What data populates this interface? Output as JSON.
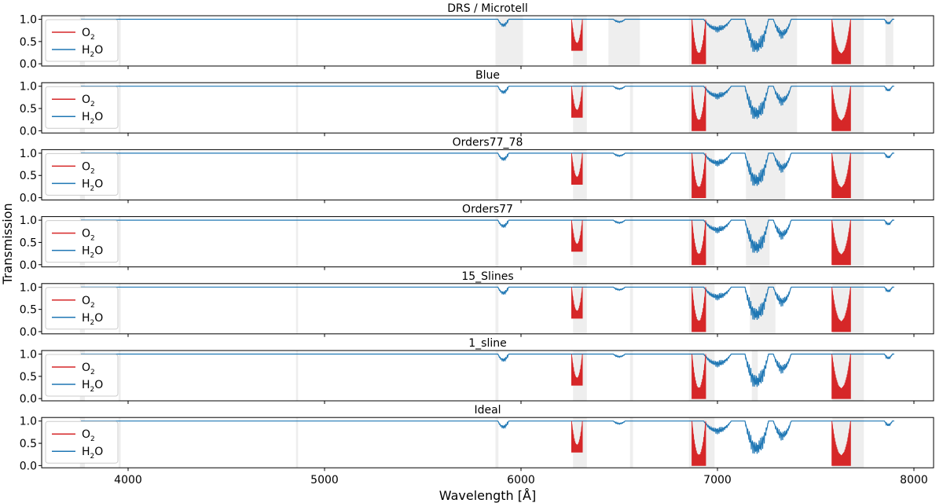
{
  "chart_data": {
    "type": "line",
    "xlabel": "Wavelength [Å]",
    "ylabel": "Transmission",
    "xlim": [
      3560,
      8100
    ],
    "ylim": [
      -0.05,
      1.08
    ],
    "x_ticks": [
      4000,
      5000,
      6000,
      7000,
      8000
    ],
    "y_ticks": [
      0.0,
      0.5,
      1.0
    ],
    "grid": false,
    "legend_position": "upper-left",
    "colors": {
      "O2": "#d62728",
      "H2O": "#1f77b4",
      "mask": "#eeeeee"
    },
    "series": [
      {
        "name": "O2",
        "bands": [
          {
            "center": 6285,
            "width": 55,
            "min": 0.3
          },
          {
            "center": 6905,
            "width": 70,
            "min": 0.0
          },
          {
            "center": 7630,
            "width": 95,
            "min": 0.0
          }
        ]
      },
      {
        "name": "H2O",
        "bands": [
          {
            "center": 5910,
            "width": 55,
            "min": 0.82
          },
          {
            "center": 6500,
            "width": 60,
            "min": 0.92
          },
          {
            "center": 7000,
            "width": 140,
            "min": 0.7
          },
          {
            "center": 7200,
            "width": 120,
            "min": 0.15
          },
          {
            "center": 7330,
            "width": 90,
            "min": 0.55
          },
          {
            "center": 7870,
            "width": 40,
            "min": 0.88
          }
        ]
      }
    ],
    "panels": [
      {
        "title": "DRS / Microtell",
        "masks": [
          [
            3755,
            3780
          ],
          [
            3952,
            3962
          ],
          [
            4855,
            4865
          ],
          [
            5870,
            6010
          ],
          [
            6265,
            6335
          ],
          [
            6445,
            6605
          ],
          [
            6855,
            7405
          ],
          [
            7585,
            7745
          ],
          [
            7855,
            7895
          ]
        ]
      },
      {
        "title": "Blue",
        "masks": [
          [
            3755,
            3780
          ],
          [
            3952,
            3962
          ],
          [
            4855,
            4865
          ],
          [
            5870,
            5885
          ],
          [
            6265,
            6335
          ],
          [
            6555,
            6570
          ],
          [
            6855,
            7405
          ],
          [
            7585,
            7745
          ]
        ]
      },
      {
        "title": "Orders77_78",
        "masks": [
          [
            3755,
            3780
          ],
          [
            3952,
            3962
          ],
          [
            4855,
            4865
          ],
          [
            5870,
            5885
          ],
          [
            6265,
            6335
          ],
          [
            6555,
            6570
          ],
          [
            6855,
            6985
          ],
          [
            7145,
            7345
          ],
          [
            7585,
            7745
          ]
        ]
      },
      {
        "title": "Orders77",
        "masks": [
          [
            3755,
            3780
          ],
          [
            3952,
            3962
          ],
          [
            4855,
            4865
          ],
          [
            5870,
            5885
          ],
          [
            6265,
            6335
          ],
          [
            6555,
            6570
          ],
          [
            6855,
            6985
          ],
          [
            7145,
            7265
          ],
          [
            7585,
            7745
          ]
        ]
      },
      {
        "title": "15_Slines",
        "masks": [
          [
            3755,
            3780
          ],
          [
            3952,
            3962
          ],
          [
            4855,
            4865
          ],
          [
            5870,
            5885
          ],
          [
            6265,
            6335
          ],
          [
            6555,
            6570
          ],
          [
            6855,
            6985
          ],
          [
            7165,
            7295
          ],
          [
            7585,
            7745
          ]
        ]
      },
      {
        "title": "1_sline",
        "masks": [
          [
            3755,
            3780
          ],
          [
            3952,
            3962
          ],
          [
            4855,
            4865
          ],
          [
            5870,
            5885
          ],
          [
            6265,
            6335
          ],
          [
            6555,
            6570
          ],
          [
            6855,
            6985
          ],
          [
            7175,
            7205
          ],
          [
            7585,
            7745
          ]
        ]
      },
      {
        "title": "Ideal",
        "masks": [
          [
            3755,
            3780
          ],
          [
            3952,
            3962
          ],
          [
            4855,
            4865
          ],
          [
            5870,
            5885
          ],
          [
            6265,
            6335
          ],
          [
            6555,
            6570
          ],
          [
            6855,
            6985
          ],
          [
            7585,
            7745
          ]
        ]
      }
    ]
  }
}
